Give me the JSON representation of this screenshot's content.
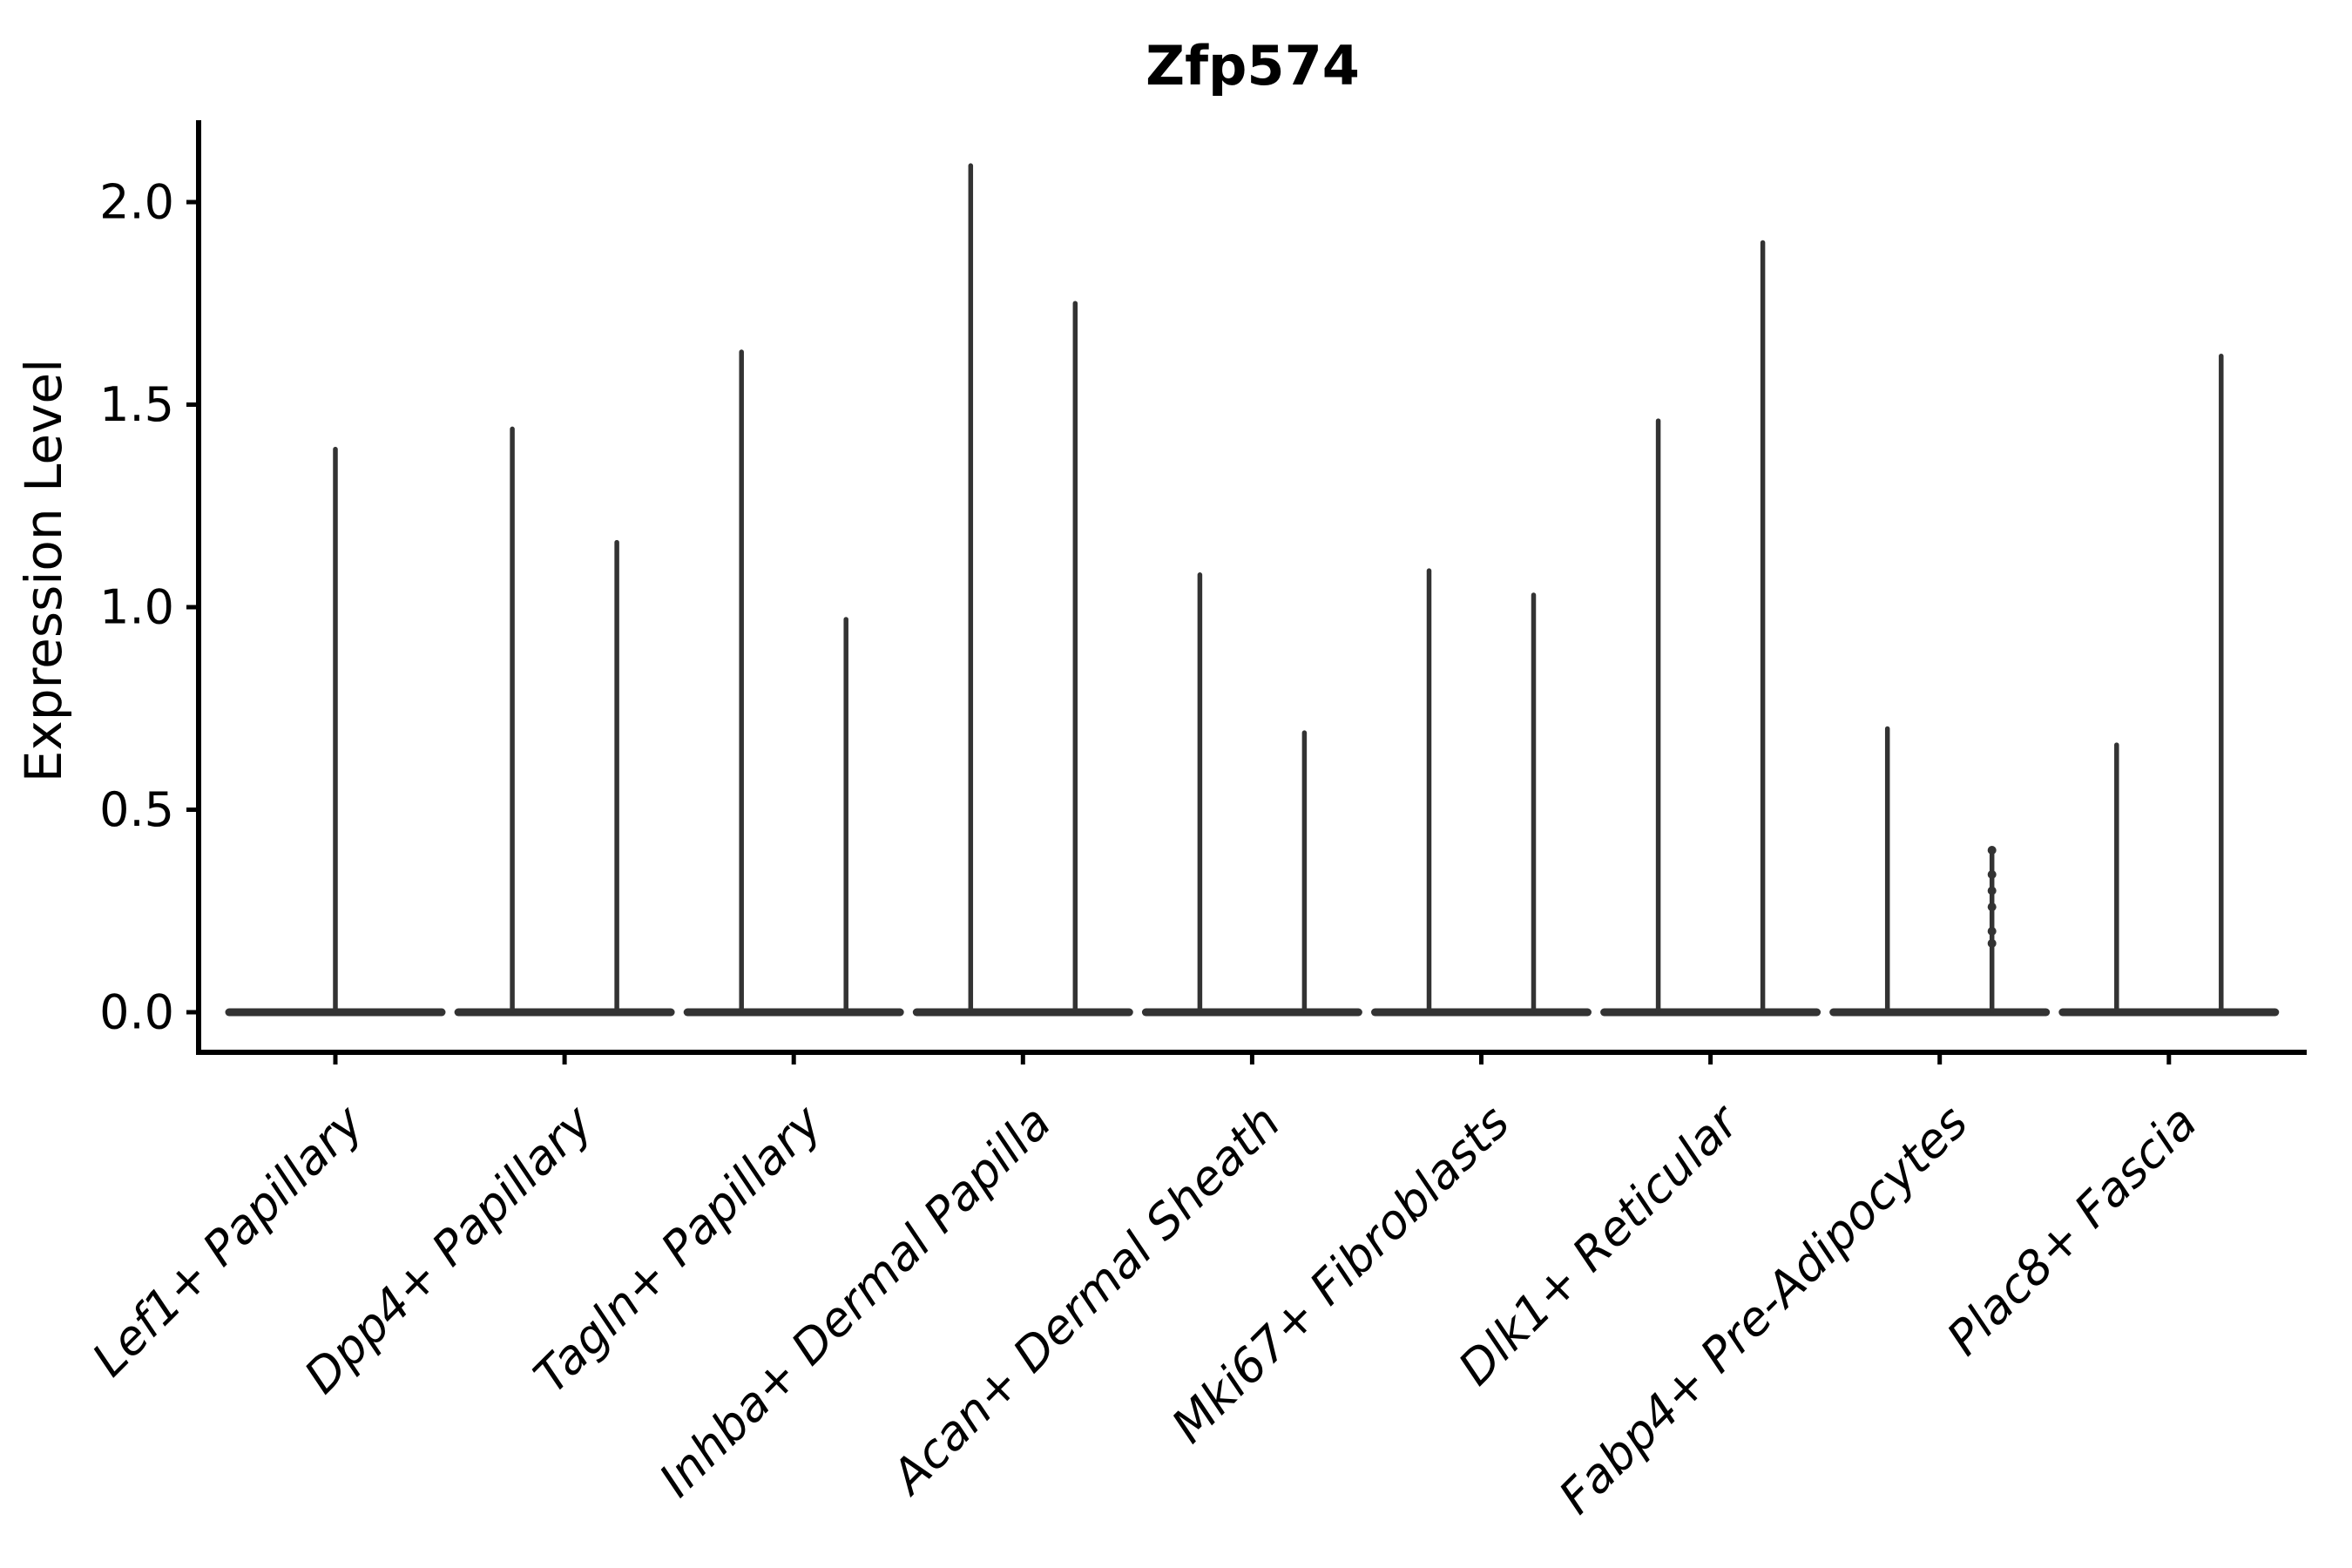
{
  "chart_data": {
    "type": "violin",
    "title": "Zfp574",
    "ylabel": "Expression Level",
    "xlabel": "",
    "ylim": [
      0,
      2.2
    ],
    "yticks": [
      0.0,
      0.5,
      1.0,
      1.5,
      2.0
    ],
    "ytick_labels": [
      "0.0",
      "0.5",
      "1.0",
      "1.5",
      "2.0"
    ],
    "grid": "off",
    "legend": "none",
    "axis_color": "#000000",
    "violin_color": "#333333",
    "categories": [
      "Lef1+ Papillary",
      "Dpp4+ Papillary",
      "Tagln+ Papillary",
      "Inhba+ Dermal Papilla",
      "Acan+ Dermal Sheath",
      "Mki67+ Fibroblasts",
      "Dlk1+ Reticular",
      "Fabp4+ Pre-Adipocytes",
      "Plac8+ Fascia"
    ],
    "series": [
      {
        "category": "Lef1+ Papillary",
        "violins": [
          {
            "offset": 0,
            "max": 1.39
          }
        ]
      },
      {
        "category": "Dpp4+ Papillary",
        "violins": [
          {
            "offset": -60,
            "max": 1.44
          },
          {
            "offset": 60,
            "max": 1.16
          }
        ]
      },
      {
        "category": "Tagln+ Papillary",
        "violins": [
          {
            "offset": -60,
            "max": 1.63
          },
          {
            "offset": 60,
            "max": 0.97
          }
        ]
      },
      {
        "category": "Inhba+ Dermal Papilla",
        "violins": [
          {
            "offset": -60,
            "max": 2.09
          },
          {
            "offset": 60,
            "max": 1.75
          }
        ]
      },
      {
        "category": "Acan+ Dermal Sheath",
        "violins": [
          {
            "offset": -60,
            "max": 1.08
          },
          {
            "offset": 60,
            "max": 0.69
          }
        ]
      },
      {
        "category": "Mki67+ Fibroblasts",
        "violins": [
          {
            "offset": -60,
            "max": 1.09
          },
          {
            "offset": 60,
            "max": 1.03
          }
        ]
      },
      {
        "category": "Dlk1+ Reticular",
        "violins": [
          {
            "offset": -60,
            "max": 1.46
          },
          {
            "offset": 60,
            "max": 1.9
          }
        ]
      },
      {
        "category": "Fabp4+ Pre-Adipocytes",
        "violins": [
          {
            "offset": -60,
            "max": 0.7
          },
          {
            "offset": 60,
            "max": 0.4,
            "dots": [
              0.4,
              0.34,
              0.3,
              0.26,
              0.2,
              0.17
            ]
          }
        ]
      },
      {
        "category": "Plac8+ Fascia",
        "violins": [
          {
            "offset": -60,
            "max": 0.66
          },
          {
            "offset": 60,
            "max": 1.62
          }
        ]
      }
    ]
  }
}
